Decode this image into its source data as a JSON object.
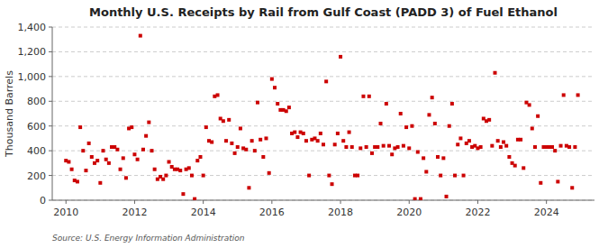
{
  "chart_data": {
    "type": "scatter",
    "title": "Monthly U.S. Receipts by Rail from Gulf Coast (PADD 3) of Fuel Ethanol",
    "ylabel": "Thousand Barrels",
    "source": "Source: U.S. Energy Information Administration",
    "color": "#cc0000",
    "marker": "square",
    "grid": "y",
    "xlim": [
      2009.6,
      2025.4
    ],
    "xticks": [
      2010,
      2012,
      2014,
      2016,
      2018,
      2020,
      2022,
      2024
    ],
    "ylim": [
      0,
      1400
    ],
    "yticks": [
      0,
      200,
      400,
      600,
      800,
      {
        "value": 1000,
        "label": "1,000"
      },
      {
        "value": 1200,
        "label": "1,200"
      },
      {
        "value": 1400,
        "label": "1,400"
      }
    ],
    "x": [
      2010.0,
      2010.083,
      2010.167,
      2010.25,
      2010.333,
      2010.417,
      2010.5,
      2010.583,
      2010.667,
      2010.75,
      2010.833,
      2010.917,
      2011.0,
      2011.083,
      2011.167,
      2011.25,
      2011.333,
      2011.417,
      2011.5,
      2011.583,
      2011.667,
      2011.75,
      2011.833,
      2011.917,
      2012.0,
      2012.083,
      2012.167,
      2012.25,
      2012.333,
      2012.417,
      2012.5,
      2012.583,
      2012.667,
      2012.75,
      2012.833,
      2012.917,
      2013.0,
      2013.083,
      2013.167,
      2013.25,
      2013.333,
      2013.417,
      2013.5,
      2013.583,
      2013.667,
      2013.75,
      2013.833,
      2013.917,
      2014.0,
      2014.083,
      2014.167,
      2014.25,
      2014.333,
      2014.417,
      2014.5,
      2014.583,
      2014.667,
      2014.75,
      2014.833,
      2014.917,
      2015.0,
      2015.083,
      2015.167,
      2015.25,
      2015.333,
      2015.417,
      2015.5,
      2015.583,
      2015.667,
      2015.75,
      2015.833,
      2015.917,
      2016.0,
      2016.083,
      2016.167,
      2016.25,
      2016.333,
      2016.417,
      2016.5,
      2016.583,
      2016.667,
      2016.75,
      2016.833,
      2016.917,
      2017.0,
      2017.083,
      2017.167,
      2017.25,
      2017.333,
      2017.417,
      2017.5,
      2017.583,
      2017.667,
      2017.75,
      2017.833,
      2017.917,
      2018.0,
      2018.083,
      2018.167,
      2018.25,
      2018.333,
      2018.417,
      2018.5,
      2018.583,
      2018.667,
      2018.75,
      2018.833,
      2018.917,
      2019.0,
      2019.083,
      2019.167,
      2019.25,
      2019.333,
      2019.417,
      2019.5,
      2019.583,
      2019.667,
      2019.75,
      2019.833,
      2019.917,
      2020.0,
      2020.083,
      2020.167,
      2020.25,
      2020.333,
      2020.417,
      2020.5,
      2020.583,
      2020.667,
      2020.75,
      2020.833,
      2020.917,
      2021.0,
      2021.083,
      2021.167,
      2021.25,
      2021.333,
      2021.417,
      2021.5,
      2021.583,
      2021.667,
      2021.75,
      2021.833,
      2021.917,
      2022.0,
      2022.083,
      2022.167,
      2022.25,
      2022.333,
      2022.417,
      2022.5,
      2022.583,
      2022.667,
      2022.75,
      2022.833,
      2022.917,
      2023.0,
      2023.083,
      2023.167,
      2023.25,
      2023.333,
      2023.417,
      2023.5,
      2023.583,
      2023.667,
      2023.75,
      2023.833,
      2023.917,
      2024.0,
      2024.083,
      2024.167,
      2024.25,
      2024.333,
      2024.417,
      2024.5,
      2024.583,
      2024.667,
      2024.75,
      2024.833,
      2024.917
    ],
    "values": [
      320,
      310,
      250,
      160,
      150,
      590,
      400,
      240,
      460,
      350,
      300,
      320,
      140,
      400,
      330,
      300,
      430,
      430,
      410,
      250,
      340,
      180,
      580,
      590,
      370,
      330,
      1330,
      410,
      520,
      630,
      400,
      250,
      170,
      190,
      170,
      200,
      310,
      270,
      250,
      250,
      240,
      50,
      250,
      260,
      200,
      10,
      320,
      350,
      200,
      590,
      480,
      470,
      840,
      850,
      660,
      640,
      480,
      650,
      460,
      380,
      430,
      580,
      420,
      410,
      100,
      480,
      400,
      790,
      490,
      350,
      500,
      220,
      980,
      910,
      780,
      730,
      730,
      720,
      750,
      540,
      550,
      510,
      550,
      540,
      480,
      200,
      490,
      500,
      480,
      540,
      450,
      960,
      200,
      130,
      450,
      540,
      1160,
      480,
      430,
      550,
      430,
      200,
      200,
      420,
      840,
      430,
      840,
      380,
      430,
      430,
      620,
      440,
      780,
      440,
      370,
      420,
      430,
      700,
      440,
      590,
      420,
      600,
      10,
      390,
      10,
      340,
      230,
      690,
      830,
      620,
      350,
      200,
      340,
      30,
      600,
      780,
      200,
      450,
      500,
      200,
      460,
      480,
      430,
      440,
      420,
      430,
      660,
      640,
      650,
      440,
      1030,
      480,
      430,
      470,
      440,
      350,
      300,
      280,
      490,
      490,
      260,
      790,
      770,
      580,
      430,
      680,
      140,
      430,
      430,
      430,
      430,
      400,
      150,
      440,
      850,
      440,
      430,
      100,
      430,
      850
    ]
  }
}
